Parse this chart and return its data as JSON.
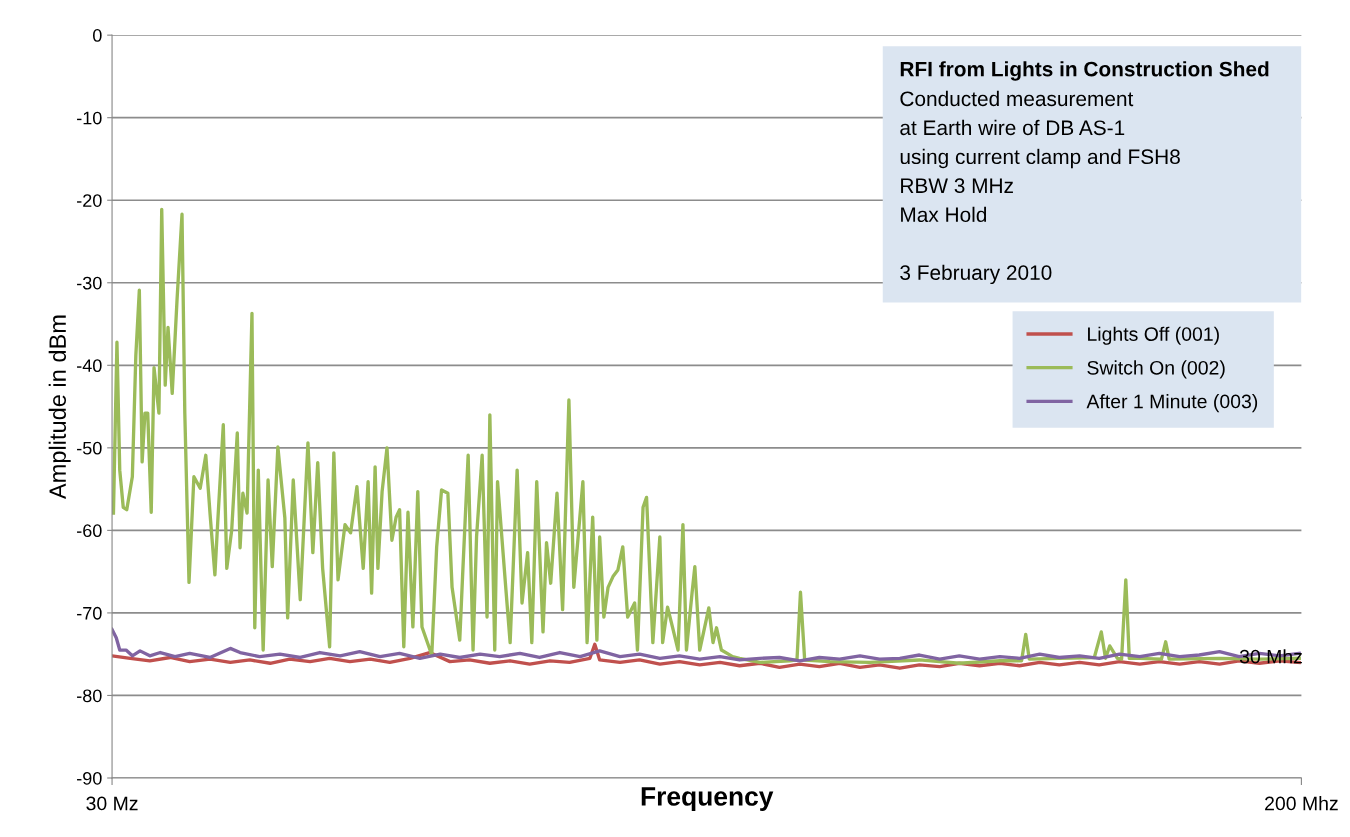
{
  "chart_data": {
    "type": "line",
    "title": "RFI from Lights in Construction Shed",
    "xlabel": "Frequency",
    "ylabel": "Amplitude in dBm",
    "annotations": [
      "Conducted measurement",
      "at Earth wire of DB AS-1",
      "using current clamp and FSH8",
      "RBW 3 MHz",
      "Max Hold",
      "3 February 2010",
      {
        "text": "30 Mhz",
        "x": 191.1,
        "y": -75.5
      }
    ],
    "xlim": [
      30,
      200
    ],
    "xticks": [
      {
        "value": 30,
        "label": "30 Mz"
      },
      {
        "value": 200,
        "label": "200 Mhz"
      }
    ],
    "ylim": [
      -90,
      0
    ],
    "yticks": [
      -90,
      -80,
      -70,
      -60,
      -50,
      -40,
      -30,
      -20,
      -10,
      0
    ],
    "grid": "y",
    "legend": "right",
    "marker": "none",
    "line_style": "solid",
    "series": [
      {
        "name": "Lights Off (001)",
        "color": "#c0504d",
        "x": [
          30,
          32.6,
          35.4,
          38.3,
          41.1,
          44,
          46.9,
          49.7,
          52.6,
          55.4,
          58.3,
          61.1,
          64,
          66.9,
          69.7,
          72.6,
          75.4,
          78.3,
          81.1,
          84,
          86.9,
          89.7,
          92.6,
          95.4,
          98.3,
          99,
          99.7,
          102.6,
          105.4,
          108.3,
          111.1,
          114,
          116.9,
          119.7,
          122.6,
          125.4,
          128.3,
          131.1,
          134,
          136.9,
          139.7,
          142.6,
          145.4,
          148.3,
          151.1,
          154,
          156.9,
          159.7,
          162.6,
          165.4,
          168.3,
          171.1,
          174,
          176.9,
          179.7,
          182.6,
          185.4,
          188.3,
          191.1,
          194,
          196.9,
          199.7
        ],
        "values": [
          -75.2,
          -75.5,
          -75.8,
          -75.4,
          -75.9,
          -75.6,
          -76,
          -75.7,
          -76.1,
          -75.6,
          -75.9,
          -75.5,
          -75.9,
          -75.6,
          -76,
          -75.5,
          -74.8,
          -75.9,
          -75.7,
          -76.1,
          -75.8,
          -76.2,
          -75.8,
          -76,
          -75.5,
          -73.8,
          -75.7,
          -76,
          -75.7,
          -76.2,
          -75.9,
          -76.3,
          -76,
          -76.4,
          -76.1,
          -76.6,
          -76.2,
          -76.5,
          -76.1,
          -76.6,
          -76.3,
          -76.7,
          -76.3,
          -76.5,
          -76.1,
          -76.4,
          -76.1,
          -76.4,
          -76,
          -76.3,
          -76,
          -76.3,
          -75.9,
          -76.2,
          -75.9,
          -76.2,
          -75.9,
          -76.2,
          -75.8,
          -76.1,
          -75.8,
          -76
        ]
      },
      {
        "name": "Switch On (002)",
        "color": "#9bbb59",
        "x": [
          30.2,
          30.7,
          31.1,
          31.6,
          32.1,
          32.9,
          33.4,
          33.9,
          34.3,
          34.7,
          35.1,
          35.6,
          36.0,
          36.7,
          37.1,
          37.6,
          38.0,
          38.6,
          39.3,
          40.0,
          40.4,
          41.0,
          41.7,
          42.6,
          43.4,
          44.0,
          44.7,
          45.1,
          45.9,
          46.4,
          47.1,
          47.9,
          48.3,
          48.7,
          49.3,
          50.0,
          50.4,
          50.9,
          51.6,
          52.3,
          52.9,
          53.7,
          54.7,
          55.1,
          55.9,
          56.9,
          58.0,
          58.7,
          59.4,
          60.1,
          61.1,
          61.7,
          62.3,
          63.3,
          64.1,
          65.0,
          65.9,
          66.6,
          67.1,
          67.6,
          68.0,
          68.6,
          69.3,
          70.0,
          70.6,
          71.1,
          71.7,
          72.3,
          73.0,
          73.7,
          74.3,
          75.7,
          76.4,
          77.1,
          78.0,
          78.6,
          79.7,
          80.1,
          80.9,
          81.6,
          82.1,
          82.9,
          83.6,
          84.0,
          84.7,
          85.1,
          86.3,
          86.9,
          87.9,
          88.6,
          89.4,
          90.0,
          90.7,
          91.6,
          92.1,
          92.7,
          93.6,
          94.4,
          95.3,
          96.0,
          97.3,
          97.9,
          98.7,
          99.3,
          99.7,
          100.3,
          100.9,
          101.6,
          102.3,
          103.0,
          103.7,
          104.7,
          105.1,
          105.9,
          106.4,
          107.3,
          108.3,
          108.7,
          109.4,
          110.1,
          110.9,
          111.6,
          112.1,
          112.9,
          113.3,
          114.0,
          115.3,
          115.9,
          116.4,
          117.1,
          118.7,
          119.7,
          122.6,
          126.9,
          127.9,
          128.4,
          129.0,
          132.6,
          138.3,
          145.4,
          151.1,
          156.9,
          160.0,
          160.6,
          161.1,
          165.4,
          170.4,
          171.4,
          172.0,
          172.6,
          173.7,
          174.3,
          174.9,
          175.4,
          176.9,
          180.0,
          180.6,
          181.1,
          188.3,
          194.0,
          199.7
        ],
        "values": [
          -57.9,
          -37.2,
          -52.7,
          -57.2,
          -57.5,
          -53.5,
          -38.8,
          -30.9,
          -51.7,
          -45.8,
          -45.8,
          -57.8,
          -40.3,
          -45.8,
          -21.1,
          -42.4,
          -35.4,
          -43.4,
          -31.9,
          -21.7,
          -45.8,
          -66.3,
          -53.5,
          -54.9,
          -50.9,
          -57.9,
          -65.4,
          -59.1,
          -47.2,
          -64.6,
          -60,
          -48.2,
          -62.1,
          -55.5,
          -57.9,
          -33.7,
          -71.8,
          -52.7,
          -74.5,
          -53.9,
          -64.4,
          -49.9,
          -58.5,
          -70.6,
          -53.9,
          -68.4,
          -49.4,
          -62.7,
          -51.8,
          -64.6,
          -74.1,
          -50.6,
          -66,
          -59.3,
          -60.3,
          -54.7,
          -64.6,
          -54.1,
          -67.6,
          -52.3,
          -64.6,
          -55.3,
          -50,
          -61.2,
          -58.4,
          -57.5,
          -74.1,
          -57.8,
          -71.7,
          -55.3,
          -71.7,
          -75.1,
          -62,
          -55.1,
          -55.5,
          -66.9,
          -73.3,
          -65.6,
          -50.9,
          -74.5,
          -60.8,
          -50.9,
          -70.5,
          -46,
          -74.5,
          -54.1,
          -67.2,
          -73.6,
          -52.7,
          -68.8,
          -62.7,
          -73.6,
          -54.1,
          -72.3,
          -61.5,
          -66.4,
          -55.5,
          -69.6,
          -44.2,
          -66.9,
          -54.1,
          -73.6,
          -58.4,
          -73.3,
          -60.8,
          -70.5,
          -66.9,
          -65.6,
          -64.8,
          -62,
          -70.5,
          -68.8,
          -74.5,
          -57.2,
          -56,
          -73.6,
          -60.8,
          -73.6,
          -69.3,
          -71.7,
          -74.5,
          -59.3,
          -74.5,
          -67.6,
          -64.4,
          -74.5,
          -69.4,
          -73.6,
          -71.8,
          -74.5,
          -75.3,
          -75.5,
          -76,
          -75.8,
          -75.7,
          -67.5,
          -75.7,
          -75.9,
          -76,
          -75.7,
          -76.1,
          -75.8,
          -75.8,
          -72.6,
          -75.6,
          -75.5,
          -75.4,
          -72.3,
          -75.5,
          -74,
          -75.5,
          -75.6,
          -66,
          -75.5,
          -75.5,
          -75.6,
          -73.5,
          -75.6,
          -75.5,
          -75.6,
          -75.5
        ]
      },
      {
        "name": "After 1 Minute (003)",
        "color": "#8064a2",
        "x": [
          30,
          30.6,
          31.1,
          32,
          32.9,
          34,
          35.4,
          36.9,
          39,
          41.1,
          44,
          46.9,
          48.3,
          51.1,
          54,
          56.9,
          59.7,
          62.6,
          65.4,
          68.3,
          71.1,
          74,
          76.9,
          79.7,
          82.6,
          85.4,
          88.3,
          91.1,
          94,
          96.9,
          99.7,
          102.6,
          105.4,
          108.3,
          111.1,
          114,
          116.9,
          119.7,
          122.6,
          125.4,
          128.3,
          131.1,
          134,
          136.9,
          139.7,
          142.6,
          145.4,
          148.3,
          151.1,
          154,
          156.9,
          159.7,
          162.6,
          165.4,
          168.3,
          171.1,
          174,
          176.9,
          179.7,
          182.6,
          185.4,
          188.3,
          191.1,
          194,
          196.9,
          199.7
        ],
        "values": [
          -72,
          -73,
          -74.5,
          -74.5,
          -75.2,
          -74.6,
          -75.2,
          -74.8,
          -75.3,
          -74.9,
          -75.4,
          -74.3,
          -74.8,
          -75.3,
          -75,
          -75.4,
          -74.8,
          -75.2,
          -74.7,
          -75.3,
          -74.9,
          -75.5,
          -75,
          -75.4,
          -75,
          -75.3,
          -74.9,
          -75.4,
          -74.8,
          -75.3,
          -74.6,
          -75.3,
          -75,
          -75.5,
          -75.2,
          -75.6,
          -75.3,
          -75.7,
          -75.5,
          -75.4,
          -75.8,
          -75.4,
          -75.6,
          -75.2,
          -75.6,
          -75.5,
          -75.1,
          -75.6,
          -75.2,
          -75.6,
          -75.3,
          -75.5,
          -75,
          -75.4,
          -75.2,
          -75.5,
          -75,
          -75.3,
          -74.9,
          -75.3,
          -75.1,
          -74.7,
          -75.3,
          -74.9,
          -75.2,
          -74.9
        ]
      }
    ]
  }
}
